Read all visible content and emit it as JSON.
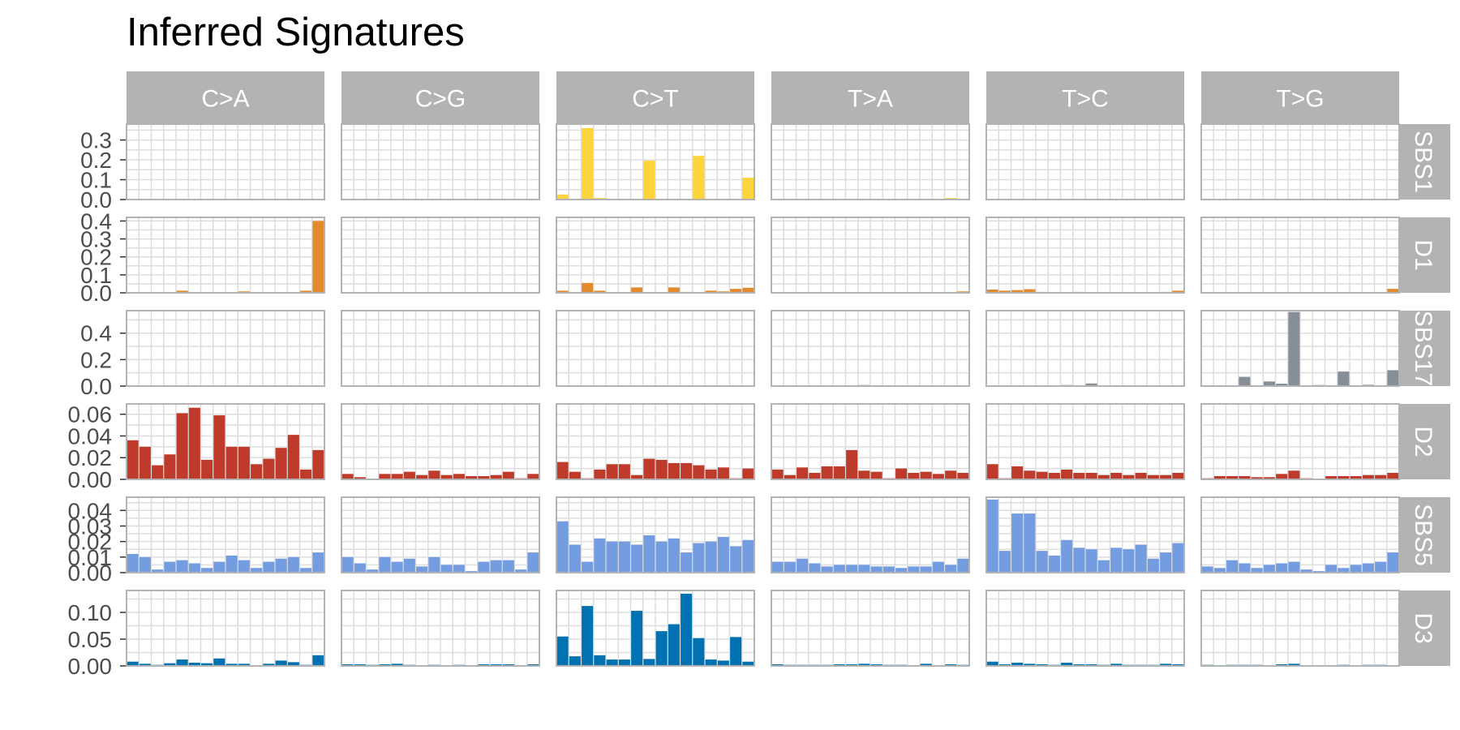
{
  "chart_data": {
    "type": "bar",
    "title": "Inferred Signatures",
    "xlabel": "",
    "ylabel": "",
    "columns": [
      "C>A",
      "C>G",
      "C>T",
      "T>A",
      "T>C",
      "T>G"
    ],
    "grid": true,
    "x_gridlines_per_panel": 16,
    "bars_per_panel": 16,
    "colors": {
      "SBS1": "#FDD43A",
      "D1": "#E38A2E",
      "SBS17": "#868F97",
      "D2": "#BE3B2C",
      "SBS5": "#749DE1",
      "D3": "#0072B2",
      "strip_bg": "#B3B3B3",
      "panel_border": "#B3B3B3",
      "grid": "#DDDDDD",
      "tick_text": "#4D4D4D"
    },
    "rows": [
      {
        "name": "SBS1",
        "ylim": [
          0,
          0.38
        ],
        "yticks": [
          0.0,
          0.1,
          0.2,
          0.3
        ],
        "ytick_labels": [
          "0.0",
          "0.1",
          "0.2",
          "0.3"
        ],
        "values": [
          [
            0.0,
            0.0,
            0.003,
            0.0,
            0.0,
            0.0,
            0.0,
            0.002,
            0.0,
            0.0,
            0.0,
            0.0,
            0.0,
            0.002,
            0.0,
            0.0
          ],
          [
            0.0,
            0.0,
            0.0,
            0.0,
            0.0,
            0.0,
            0.0,
            0.0,
            0.0,
            0.0,
            0.0,
            0.0,
            0.0,
            0.0,
            0.0,
            0.0
          ],
          [
            0.025,
            0.004,
            0.36,
            0.008,
            0.003,
            0.0,
            0.0,
            0.196,
            0.0,
            0.003,
            0.0,
            0.22,
            0.002,
            0.0,
            0.0,
            0.11
          ],
          [
            0.0,
            0.0,
            0.0,
            0.0,
            0.0,
            0.0,
            0.0,
            0.0,
            0.0,
            0.0,
            0.0,
            0.0,
            0.0,
            0.0,
            0.008,
            0.0
          ],
          [
            0.002,
            0.0,
            0.002,
            0.0,
            0.004,
            0.0,
            0.0,
            0.002,
            0.0,
            0.0,
            0.0,
            0.0,
            0.0,
            0.0,
            0.0,
            0.0
          ],
          [
            0.002,
            0.0,
            0.0,
            0.0,
            0.0,
            0.0,
            0.0,
            0.0,
            0.0,
            0.0,
            0.0,
            0.0,
            0.0,
            0.0,
            0.002,
            0.002
          ]
        ]
      },
      {
        "name": "D1",
        "ylim": [
          0,
          0.42
        ],
        "yticks": [
          0.0,
          0.1,
          0.2,
          0.3,
          0.4
        ],
        "ytick_labels": [
          "0.0",
          "0.1",
          "0.2",
          "0.3",
          "0.4"
        ],
        "values": [
          [
            0.003,
            0.0,
            0.0,
            0.0,
            0.012,
            0.0,
            0.0,
            0.003,
            0.0,
            0.008,
            0.0,
            0.0,
            0.0,
            0.0,
            0.012,
            0.4
          ],
          [
            0.0,
            0.0,
            0.0,
            0.0,
            0.003,
            0.0,
            0.0,
            0.0,
            0.002,
            0.0,
            0.0,
            0.0,
            0.0,
            0.0,
            0.0,
            0.003
          ],
          [
            0.012,
            0.004,
            0.055,
            0.012,
            0.003,
            0.0,
            0.03,
            0.0,
            0.003,
            0.03,
            0.005,
            0.003,
            0.012,
            0.008,
            0.022,
            0.028
          ],
          [
            0.0,
            0.0,
            0.0,
            0.003,
            0.0,
            0.0,
            0.0,
            0.0,
            0.0,
            0.0,
            0.0,
            0.0,
            0.0,
            0.0,
            0.0,
            0.008
          ],
          [
            0.018,
            0.012,
            0.015,
            0.02,
            0.005,
            0.004,
            0.004,
            0.005,
            0.004,
            0.004,
            0.004,
            0.004,
            0.004,
            0.004,
            0.005,
            0.012
          ],
          [
            0.0,
            0.0,
            0.0,
            0.0,
            0.0,
            0.003,
            0.0,
            0.0,
            0.0,
            0.0,
            0.0,
            0.0,
            0.0,
            0.0,
            0.0,
            0.022
          ]
        ]
      },
      {
        "name": "SBS17",
        "ylim": [
          0,
          0.57
        ],
        "yticks": [
          0.0,
          0.2,
          0.4
        ],
        "ytick_labels": [
          "0.0",
          "0.2",
          "0.4"
        ],
        "values": [
          [
            0.0,
            0.0,
            0.0,
            0.0,
            0.0,
            0.0,
            0.0,
            0.0,
            0.0,
            0.0,
            0.0,
            0.0,
            0.0,
            0.0,
            0.0,
            0.0
          ],
          [
            0.0,
            0.0,
            0.0,
            0.0,
            0.0,
            0.0,
            0.0,
            0.0,
            0.0,
            0.0,
            0.0,
            0.0,
            0.0,
            0.0,
            0.0,
            0.0
          ],
          [
            0.0,
            0.0,
            0.0,
            0.0,
            0.0,
            0.0,
            0.0,
            0.0,
            0.0,
            0.0,
            0.0,
            0.0,
            0.0,
            0.0,
            0.0,
            0.0
          ],
          [
            0.0,
            0.0,
            0.0,
            0.0,
            0.0,
            0.0,
            0.0,
            0.008,
            0.0,
            0.0,
            0.0,
            0.0,
            0.0,
            0.0,
            0.0,
            0.0
          ],
          [
            0.0,
            0.0,
            0.0,
            0.0,
            0.0,
            0.0,
            0.008,
            0.0,
            0.02,
            0.0,
            0.0,
            0.0,
            0.0,
            0.0,
            0.0,
            0.0
          ],
          [
            0.0,
            0.005,
            0.0,
            0.07,
            0.0,
            0.035,
            0.018,
            0.56,
            0.0,
            0.008,
            0.0,
            0.11,
            0.0,
            0.01,
            0.0,
            0.12
          ]
        ]
      },
      {
        "name": "D2",
        "ylim": [
          0,
          0.0695
        ],
        "yticks": [
          0.0,
          0.02,
          0.04,
          0.06
        ],
        "ytick_labels": [
          "0.00",
          "0.02",
          "0.04",
          "0.06"
        ],
        "values": [
          [
            0.036,
            0.03,
            0.013,
            0.023,
            0.061,
            0.066,
            0.018,
            0.059,
            0.03,
            0.03,
            0.014,
            0.019,
            0.029,
            0.041,
            0.009,
            0.027
          ],
          [
            0.005,
            0.002,
            0.0,
            0.005,
            0.005,
            0.007,
            0.004,
            0.008,
            0.004,
            0.005,
            0.003,
            0.003,
            0.004,
            0.007,
            0.001,
            0.005
          ],
          [
            0.016,
            0.007,
            0.001,
            0.009,
            0.014,
            0.014,
            0.004,
            0.019,
            0.018,
            0.015,
            0.015,
            0.013,
            0.009,
            0.011,
            0.001,
            0.01
          ],
          [
            0.009,
            0.004,
            0.011,
            0.006,
            0.012,
            0.012,
            0.027,
            0.008,
            0.007,
            0.001,
            0.01,
            0.006,
            0.007,
            0.005,
            0.008,
            0.006
          ],
          [
            0.014,
            0.001,
            0.012,
            0.008,
            0.007,
            0.006,
            0.009,
            0.006,
            0.006,
            0.004,
            0.006,
            0.004,
            0.006,
            0.004,
            0.004,
            0.006
          ],
          [
            0.001,
            0.003,
            0.003,
            0.003,
            0.002,
            0.002,
            0.005,
            0.008,
            0.001,
            0.0,
            0.003,
            0.003,
            0.003,
            0.004,
            0.004,
            0.006
          ]
        ]
      },
      {
        "name": "SBS5",
        "ylim": [
          0,
          0.0485
        ],
        "yticks": [
          0.0,
          0.01,
          0.02,
          0.03,
          0.04
        ],
        "ytick_labels": [
          "0.00",
          "0.01",
          "0.02",
          "0.03",
          "0.04"
        ],
        "values": [
          [
            0.012,
            0.01,
            0.002,
            0.007,
            0.008,
            0.006,
            0.003,
            0.007,
            0.011,
            0.008,
            0.003,
            0.007,
            0.009,
            0.01,
            0.003,
            0.013
          ],
          [
            0.01,
            0.006,
            0.002,
            0.01,
            0.007,
            0.009,
            0.004,
            0.01,
            0.005,
            0.005,
            0.001,
            0.007,
            0.008,
            0.008,
            0.002,
            0.013
          ],
          [
            0.033,
            0.018,
            0.007,
            0.022,
            0.02,
            0.02,
            0.018,
            0.024,
            0.02,
            0.022,
            0.013,
            0.019,
            0.02,
            0.023,
            0.017,
            0.021
          ],
          [
            0.007,
            0.007,
            0.009,
            0.006,
            0.004,
            0.005,
            0.005,
            0.005,
            0.004,
            0.004,
            0.003,
            0.004,
            0.004,
            0.007,
            0.005,
            0.009
          ],
          [
            0.047,
            0.014,
            0.038,
            0.038,
            0.014,
            0.011,
            0.021,
            0.016,
            0.015,
            0.008,
            0.016,
            0.015,
            0.018,
            0.009,
            0.013,
            0.019
          ],
          [
            0.004,
            0.003,
            0.008,
            0.006,
            0.003,
            0.005,
            0.006,
            0.007,
            0.002,
            0.001,
            0.005,
            0.003,
            0.005,
            0.006,
            0.007,
            0.013
          ]
        ]
      },
      {
        "name": "D3",
        "ylim": [
          0,
          0.141
        ],
        "yticks": [
          0.0,
          0.05,
          0.1
        ],
        "ytick_labels": [
          "0.00",
          "0.05",
          "0.10"
        ],
        "values": [
          [
            0.008,
            0.004,
            0.002,
            0.005,
            0.012,
            0.006,
            0.005,
            0.014,
            0.004,
            0.004,
            0.001,
            0.004,
            0.01,
            0.007,
            0.002,
            0.02
          ],
          [
            0.003,
            0.003,
            0.002,
            0.003,
            0.004,
            0.002,
            0.001,
            0.002,
            0.001,
            0.002,
            0.001,
            0.003,
            0.003,
            0.003,
            0.001,
            0.003
          ],
          [
            0.055,
            0.018,
            0.112,
            0.02,
            0.012,
            0.012,
            0.103,
            0.013,
            0.065,
            0.078,
            0.135,
            0.052,
            0.012,
            0.01,
            0.054,
            0.008
          ],
          [
            0.003,
            0.002,
            0.002,
            0.002,
            0.002,
            0.003,
            0.003,
            0.004,
            0.003,
            0.002,
            0.002,
            0.001,
            0.004,
            0.001,
            0.003,
            0.002
          ],
          [
            0.008,
            0.003,
            0.006,
            0.004,
            0.003,
            0.002,
            0.006,
            0.003,
            0.003,
            0.002,
            0.004,
            0.002,
            0.002,
            0.002,
            0.004,
            0.003
          ],
          [
            0.002,
            0.001,
            0.002,
            0.002,
            0.002,
            0.001,
            0.003,
            0.004,
            0.001,
            0.001,
            0.001,
            0.002,
            0.001,
            0.002,
            0.002,
            0.001
          ]
        ]
      }
    ]
  }
}
